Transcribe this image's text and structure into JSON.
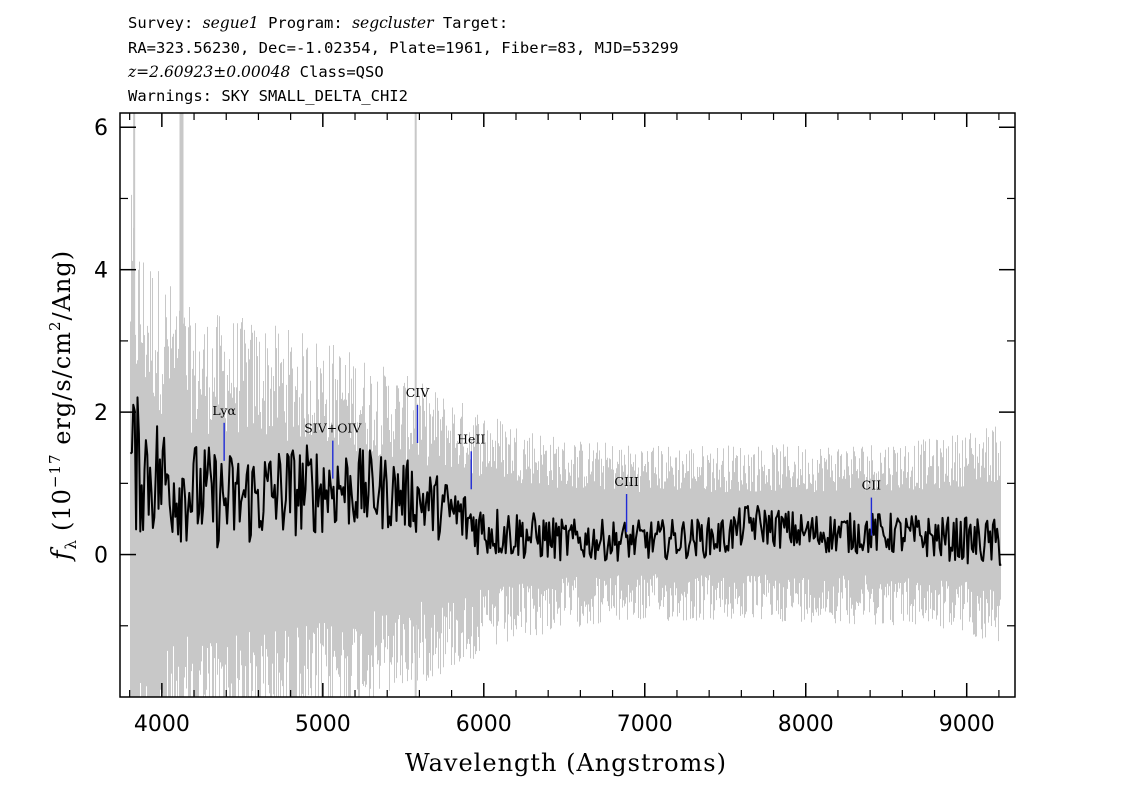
{
  "header": {
    "survey_label": "Survey: ",
    "survey": "segue1",
    "program_label": " Program: ",
    "program": "segcluster",
    "target_label": " Target:",
    "coords": "RA=323.56230, Dec=-1.02354, Plate=1961, Fiber=83, MJD=53299",
    "redshift": "z=2.60923±0.00048",
    "class": " Class=QSO",
    "warnings": "Warnings: SKY SMALL_DELTA_CHI2"
  },
  "chart_data": {
    "type": "line",
    "xlabel": "Wavelength (Angstroms)",
    "ylabel_prefix": "(10",
    "ylabel_exp": "−17",
    "ylabel_mid": " erg/s/cm",
    "ylabel_sq": "2",
    "ylabel_suffix": "/Ang)",
    "ylabel_symbol": "f",
    "ylabel_sub": "λ",
    "xlim": [
      3740,
      9300
    ],
    "ylim": [
      -2.0,
      6.2
    ],
    "xticks": [
      4000,
      5000,
      6000,
      7000,
      8000,
      9000
    ],
    "xtick_labels": [
      "4000",
      "5000",
      "6000",
      "7000",
      "8000",
      "9000"
    ],
    "yticks": [
      0,
      2,
      4,
      6
    ],
    "ytick_labels": [
      "0",
      "2",
      "4",
      "6"
    ],
    "wavelength_range": [
      3805,
      9215
    ],
    "series": [
      {
        "role": "noise",
        "color": "#c8c8c8",
        "anchors_x": [
          3805,
          3850,
          4000,
          4200,
          4400,
          5000,
          5600,
          6000,
          6500,
          7000,
          8000,
          8800,
          9215
        ],
        "anchors_y": [
          3.0,
          2.6,
          2.3,
          1.9,
          1.9,
          1.7,
          1.3,
          1.05,
          0.8,
          0.75,
          0.75,
          0.8,
          0.95
        ]
      },
      {
        "role": "flux",
        "color": "#000000",
        "anchors_x": [
          3805,
          3900,
          4100,
          4400,
          4800,
          5100,
          5500,
          5800,
          6000,
          6500,
          7000,
          7500,
          7650,
          8000,
          8500,
          9000,
          9215
        ],
        "anchors_y": [
          1.3,
          1.2,
          0.95,
          0.75,
          0.9,
          0.95,
          0.85,
          0.6,
          0.35,
          0.2,
          0.2,
          0.25,
          0.45,
          0.3,
          0.3,
          0.2,
          0.15
        ]
      }
    ],
    "sky_lines": [
      {
        "x": 3828,
        "color": "#c8c8c8"
      },
      {
        "x": 4122,
        "color": "#c8c8c8"
      },
      {
        "x": 5577,
        "color": "#c8c8c8"
      }
    ],
    "emission_lines": [
      {
        "label": "Lyα",
        "x": 4387,
        "y": 1.85,
        "color": "#1f2bd6"
      },
      {
        "label": "SIV+OIV",
        "x": 5062,
        "y": 1.6,
        "color": "#1f2bd6"
      },
      {
        "label": "CIV",
        "x": 5588,
        "y": 2.1,
        "color": "#1f2bd6"
      },
      {
        "label": "HeII",
        "x": 5922,
        "y": 1.45,
        "color": "#1f2bd6"
      },
      {
        "label": "CIII",
        "x": 6887,
        "y": 0.85,
        "color": "#1f2bd6"
      },
      {
        "label": "CII",
        "x": 8408,
        "y": 0.8,
        "color": "#1f2bd6"
      }
    ]
  }
}
